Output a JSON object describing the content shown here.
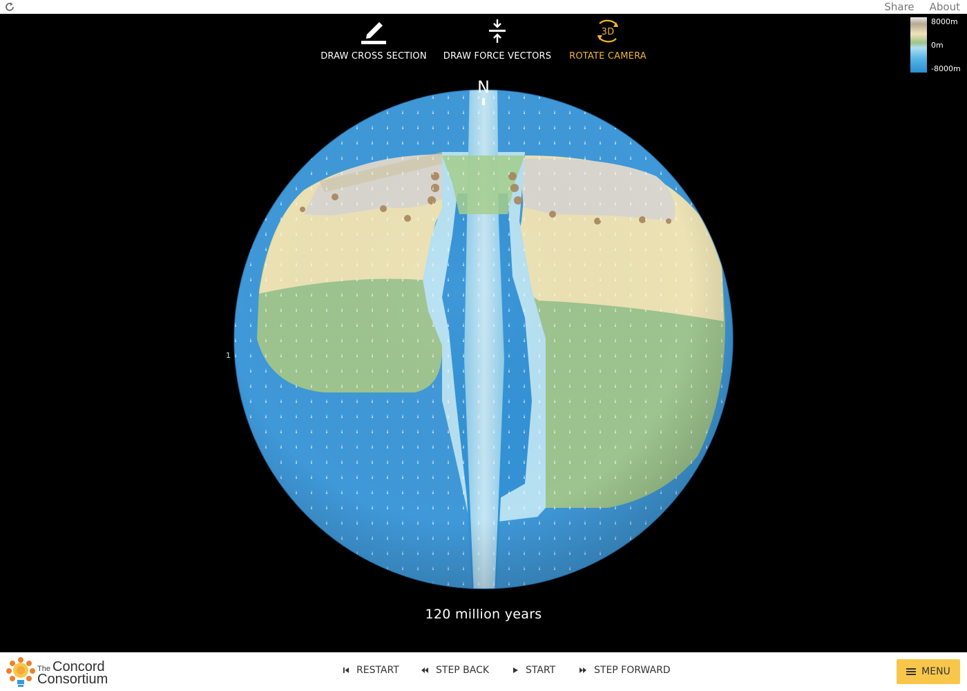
{
  "topbar": {
    "share_label": "Share",
    "about_label": "About"
  },
  "tools": {
    "cross_section": "DRAW CROSS SECTION",
    "force_vectors": "DRAW FORCE VECTORS",
    "rotate_camera": "ROTATE CAMERA",
    "rotate_icon_text": "3D",
    "active": "rotate_camera"
  },
  "globe": {
    "north_label": "N",
    "side_label": "1"
  },
  "legend": {
    "max_label": "8000m",
    "mid_label": "0m",
    "min_label": "-8000m"
  },
  "time": {
    "label": "120 million years"
  },
  "controls": {
    "restart": "RESTART",
    "step_back": "STEP BACK",
    "start": "START",
    "step_forward": "STEP FORWARD",
    "menu": "MENU"
  },
  "logo": {
    "the": "The",
    "word1": "Concord",
    "word2": "Consortium"
  },
  "colors": {
    "ocean": "#3f98d8",
    "ridge": "#a8d8f0",
    "lowland": "#9dc48e",
    "highland": "#ece2b4",
    "mountain": "#d8d6d0",
    "accent": "#f2b531",
    "menu_bg": "#f8c74a"
  }
}
